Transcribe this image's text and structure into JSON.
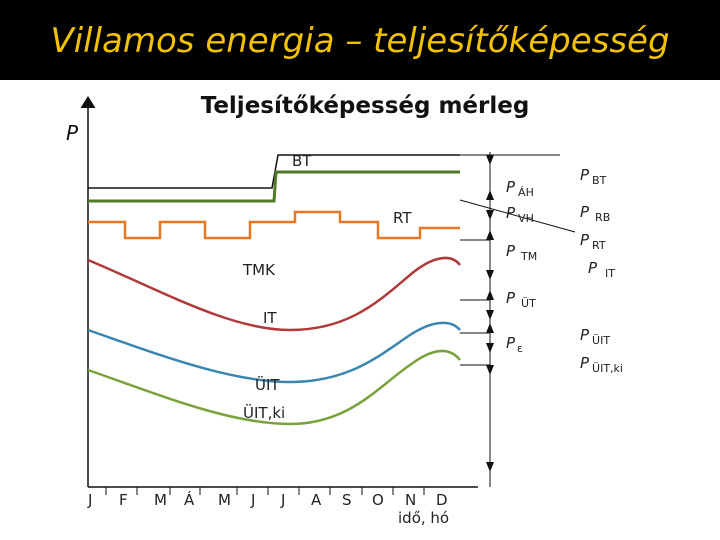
{
  "header": {
    "title": "Villamos energia – teljesítőképesség"
  },
  "diagram": {
    "title": "Teljesítőképesség mérleg",
    "y_axis_label": "P",
    "x_axis_label": "idő, hó",
    "months": [
      "J",
      "F",
      "M",
      "Á",
      "M",
      "J",
      "J",
      "A",
      "S",
      "O",
      "N",
      "D"
    ],
    "curves": [
      "BT",
      "RT",
      "TMK",
      "IT",
      "ÜIT",
      "ÜIT,ki"
    ],
    "middle_labels": [
      {
        "symbol": "P",
        "sub": "ÁH"
      },
      {
        "symbol": "P",
        "sub": "VH"
      },
      {
        "symbol": "P",
        "sub": "TM"
      },
      {
        "symbol": "P",
        "sub": "ÜT"
      },
      {
        "symbol": "P",
        "sub": "ε"
      }
    ],
    "right_labels": [
      {
        "symbol": "P",
        "sub": "BT"
      },
      {
        "symbol": "P",
        "sub": "RB"
      },
      {
        "symbol": "P",
        "sub": "RT"
      },
      {
        "symbol": "P",
        "sub": "IT"
      },
      {
        "symbol": "P",
        "sub": "ÜIT"
      },
      {
        "symbol": "P",
        "sub": "ÜIT,ki"
      }
    ]
  }
}
